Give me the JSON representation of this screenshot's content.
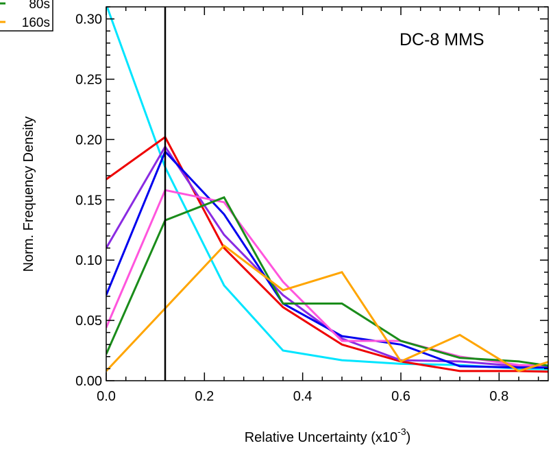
{
  "chart_data": {
    "type": "line",
    "annotation": "DC-8 MMS",
    "xlabel": "Relative Uncertainty (x10",
    "xlabel_sup": "-3",
    "xlabel_close": ")",
    "ylabel": "Norm. Frequency Density",
    "xlim": [
      0.0,
      0.9
    ],
    "ylim": [
      0.0,
      0.31
    ],
    "xticks": [
      0.0,
      0.2,
      0.4,
      0.6,
      0.8
    ],
    "xtick_labels": [
      "0.0",
      "0.2",
      "0.4",
      "0.6",
      "0.8"
    ],
    "yticks": [
      0.0,
      0.05,
      0.1,
      0.15,
      0.2,
      0.25,
      0.3
    ],
    "ytick_labels": [
      "0.00",
      "0.05",
      "0.10",
      "0.15",
      "0.20",
      "0.25",
      "0.30"
    ],
    "vline_x": 0.12,
    "grid": false,
    "legend_placement": "top-left (clipped)",
    "legend_entries": [
      {
        "name": "80s",
        "color": "#1a8c1a"
      },
      {
        "name": "160s",
        "color": "#ffa500"
      }
    ],
    "x": [
      0.0,
      0.12,
      0.24,
      0.36,
      0.48,
      0.6,
      0.72,
      0.84,
      0.96
    ],
    "series": [
      {
        "color": "#00e5ff",
        "values": [
          0.312,
          0.177,
          0.079,
          0.025,
          0.017,
          0.014,
          0.013,
          0.01,
          0.009
        ]
      },
      {
        "color": "#ee0000",
        "values": [
          0.167,
          0.202,
          0.11,
          0.061,
          0.03,
          0.016,
          0.008,
          0.008,
          0.007
        ]
      },
      {
        "color": "#8a2be2",
        "values": [
          0.11,
          0.194,
          0.121,
          0.071,
          0.035,
          0.017,
          0.016,
          0.012,
          0.01
        ]
      },
      {
        "color": "#0000ee",
        "values": [
          0.071,
          0.19,
          0.138,
          0.064,
          0.037,
          0.03,
          0.012,
          0.011,
          0.011
        ]
      },
      {
        "color": "#ff55dd",
        "values": [
          0.044,
          0.158,
          0.148,
          0.082,
          0.033,
          0.033,
          0.02,
          0.013,
          0.012
        ]
      },
      {
        "color": "#1a8c1a",
        "values": [
          0.022,
          0.133,
          0.152,
          0.064,
          0.064,
          0.033,
          0.019,
          0.016,
          0.009
        ]
      },
      {
        "color": "#ffa500",
        "values": [
          0.008,
          0.06,
          0.112,
          0.075,
          0.09,
          0.016,
          0.038,
          0.008,
          0.023
        ]
      }
    ]
  }
}
